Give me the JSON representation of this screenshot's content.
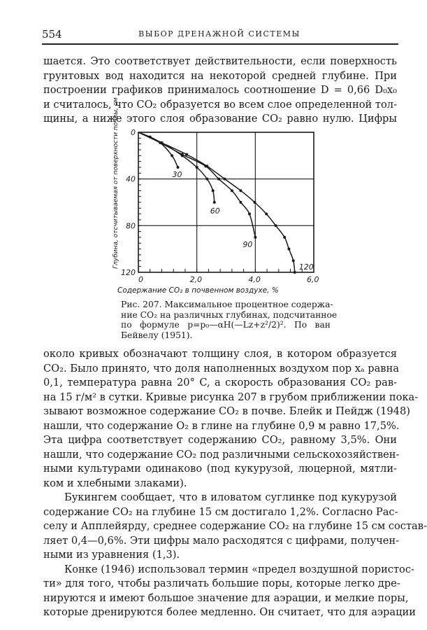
{
  "header": {
    "page_number": "554",
    "running_title": "ВЫБОР ДРЕНАЖНОЙ СИСТЕМЫ"
  },
  "para_top": [
    "шается. Это соответствует действительности, если поверхность",
    "грунтовых вод находится на некоторой средней глубине. При",
    "построении графиков принималось соотношение D = 0,66 D₀x₀",
    "и считалось, что CO₂ образуется во всем слое определенной тол-",
    "щины, а ниже этого слоя образование CO₂ равно нулю. Цифры"
  ],
  "figure": {
    "caption": [
      "Рис. 207. Максимальное процентное содержа-",
      "ние CO₂ на различных глубинах, подсчитанное",
      "по формуле p=p₀—αH(—Lz+z²/2)². По ван",
      "Бейвелу (1951)."
    ]
  },
  "chart_data": {
    "type": "line",
    "xlabel": "Содержание CO₂ в почвенном воздухе, %",
    "ylabel": "Глубина, отсчитываемая от поверхности почвы, см",
    "xlim": [
      0,
      6
    ],
    "ylim": [
      0,
      120
    ],
    "y_inverted": true,
    "grid": true,
    "x_ticks": [
      "0",
      "2,0",
      "4,0",
      "6,0"
    ],
    "y_ticks": [
      "0",
      "40",
      "80",
      "120"
    ],
    "series": [
      {
        "name": "30",
        "points": [
          [
            0,
            0
          ],
          [
            0.4,
            4
          ],
          [
            0.75,
            9
          ],
          [
            1.15,
            20
          ],
          [
            1.35,
            30
          ]
        ]
      },
      {
        "name": "60",
        "points": [
          [
            0,
            0
          ],
          [
            0.8,
            9
          ],
          [
            1.5,
            20
          ],
          [
            2.0,
            30
          ],
          [
            2.35,
            40
          ],
          [
            2.55,
            50
          ],
          [
            2.6,
            60
          ]
        ]
      },
      {
        "name": "90",
        "points": [
          [
            0,
            0
          ],
          [
            0.75,
            9
          ],
          [
            1.5,
            19
          ],
          [
            2.3,
            29
          ],
          [
            2.75,
            40
          ],
          [
            3.2,
            50
          ],
          [
            3.5,
            60
          ],
          [
            3.8,
            70
          ],
          [
            4.0,
            90
          ]
        ]
      },
      {
        "name": "120",
        "points": [
          [
            0,
            0
          ],
          [
            0.8,
            9
          ],
          [
            1.65,
            19
          ],
          [
            2.35,
            29
          ],
          [
            2.95,
            40
          ],
          [
            3.5,
            50
          ],
          [
            3.98,
            60
          ],
          [
            4.38,
            70
          ],
          [
            4.7,
            80
          ],
          [
            5.0,
            90
          ],
          [
            5.15,
            100
          ],
          [
            5.3,
            110
          ],
          [
            5.35,
            120
          ]
        ]
      }
    ]
  },
  "para_bottom": [
    {
      "t": "около кривых обозначают толщину слоя, в котором образуется"
    },
    {
      "t": "CO₂. Было принято, что доля наполненных воздухом пор xₐ равна"
    },
    {
      "t": "0,1, температура равна 20° C, а скорость образования CO₂ рав-"
    },
    {
      "t": "на 15 г/м² в сутки. Кривые рисунка 207 в грубом приближении пока-"
    },
    {
      "t": "зывают возможное содержание CO₂ в почве. Блейк и Пейдж (1948)"
    },
    {
      "t": "нашли, что содержание O₂ в глине на глубине 0,9 м равно 17,5%."
    },
    {
      "t": "Эта цифра соответствует содержанию CO₂, равному 3,5%. Они"
    },
    {
      "t": "нашли, что содержание CO₂ под различными сельскохозяйствен-"
    },
    {
      "t": "ными культурами одинаково (под кукурузой, люцерной, мятли-"
    },
    {
      "t": "ком и хлебными злаками).",
      "last": true
    },
    {
      "t": "Букингем сообщает, что в иловатом суглинке под кукурузой",
      "ind": true
    },
    {
      "t": "содержание CO₂ на глубине 15 см достигало 1,2%. Согласно Рас-"
    },
    {
      "t": "селу и Апплейярду, среднее содержание CO₂ на глубине 15 см состав-"
    },
    {
      "t": "ляет 0,4—0,6%. Эти цифры мало расходятся с цифрами, получен-"
    },
    {
      "t": "ными из уравнения (1,3).",
      "last": true
    },
    {
      "t": "Конке (1946) использовал термин «предел воздушной пористос-",
      "ind": true
    },
    {
      "t": "ти» для того, чтобы различать большие поры, которые легко дре-"
    },
    {
      "t": "нируются и имеют большое значение для аэрации, и мелкие поры,"
    },
    {
      "t": "которые дренируются более медленно. Он считает, что для аэрации"
    }
  ]
}
